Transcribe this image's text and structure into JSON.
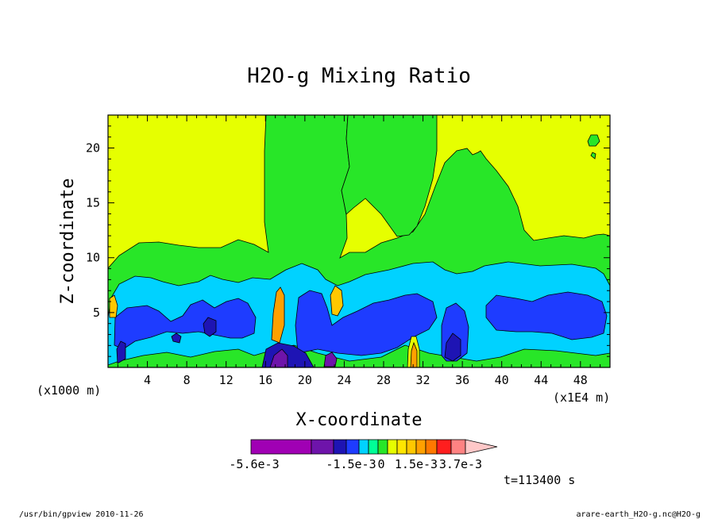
{
  "chart_data": {
    "type": "heatmap",
    "title": "H2O-g Mixing Ratio",
    "xlabel": "X-coordinate",
    "ylabel": "Z-coordinate",
    "x_unit": "(x1000 m)",
    "x_unit_extra": "(x1E4 m)",
    "x_ticks": [
      4,
      8,
      12,
      16,
      20,
      24,
      28,
      32,
      36,
      40,
      44,
      48
    ],
    "y_ticks": [
      5,
      10,
      15,
      20
    ],
    "xlim": [
      0,
      51
    ],
    "ylim": [
      0,
      23
    ],
    "colorbar": {
      "colors": [
        "#a000b4",
        "#a000b4",
        "#6e14aa",
        "#1e14b4",
        "#1e3cff",
        "#00d2ff",
        "#00ff96",
        "#28e628",
        "#e6ff00",
        "#ffe600",
        "#ffc800",
        "#ffa000",
        "#ff7800",
        "#ff1e1e",
        "#ff8282",
        "#ffc8c8"
      ],
      "labels": [
        "-5.6e-3",
        "-1.5e-3",
        "0",
        "1.5e-3",
        "3.7e-3"
      ]
    },
    "time_label": "t=113400 s"
  },
  "footer": {
    "left": "/usr/bin/gpview  2010-11-26",
    "right": "arare-earth_H2O-g.nc@H2O-g"
  }
}
